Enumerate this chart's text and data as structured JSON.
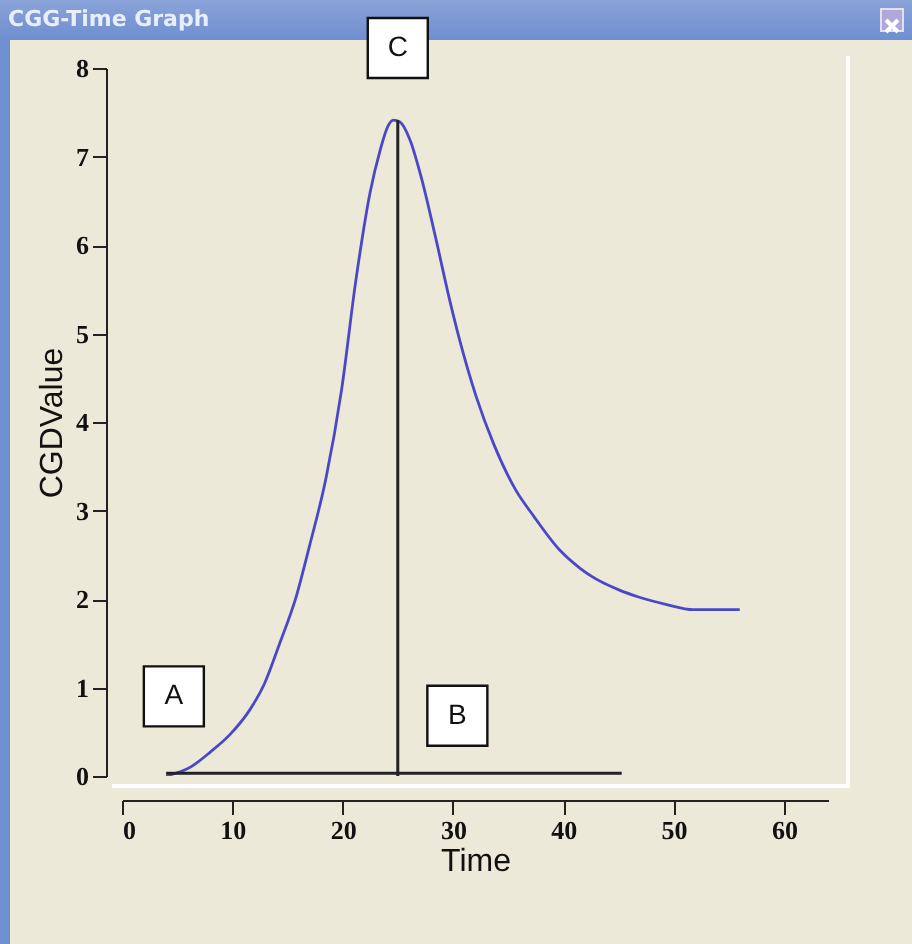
{
  "chart_data": {
    "type": "line",
    "title": "CGG-Time Graph",
    "xlabel": "Time",
    "ylabel": "CGDValue",
    "xlim": [
      0,
      64
    ],
    "xticks": [
      0,
      10,
      20,
      30,
      40,
      50,
      60
    ],
    "ylim": [
      0,
      8
    ],
    "yticks": [
      0,
      1,
      2,
      3,
      4,
      5,
      6,
      7,
      8
    ],
    "grid": false,
    "marker": "none",
    "line_style": "solid",
    "annotations": [
      {
        "text": "A",
        "x": 4.7,
        "y": 0.9
      },
      {
        "text": "B",
        "x": 30.4,
        "y": 0.68
      },
      {
        "text": "C",
        "x": 25
      }
    ],
    "series": [
      {
        "color": "#4a48c8",
        "x": [
          4,
          6.2,
          8,
          9.8,
          11.6,
          12.9,
          14.3,
          15.8,
          17,
          18.5,
          19.9,
          21.2,
          22.5,
          23.4,
          24.1,
          24.6,
          25.2,
          26.1,
          27.2,
          28.4,
          29.7,
          30.6,
          32.1,
          33.7,
          35.7,
          37.3,
          39.7,
          41.5,
          42.4,
          45.1,
          46.9,
          49.3,
          51.8,
          53.5,
          56
        ],
        "values": [
          0,
          0.1,
          0.27,
          0.47,
          0.75,
          1.04,
          1.5,
          2.03,
          2.6,
          3.37,
          4.36,
          5.6,
          6.6,
          7.07,
          7.34,
          7.41,
          7.39,
          7.19,
          6.73,
          6.1,
          5.38,
          4.93,
          4.29,
          3.75,
          3.23,
          2.94,
          2.55,
          2.35,
          2.27,
          2.1,
          2.02,
          1.94,
          1.88,
          1.88,
          1.88
        ]
      },
      {
        "color": "#222222",
        "x": [
          25,
          25
        ],
        "values": [
          0,
          7.41
        ]
      },
      {
        "color": "#222222",
        "x": [
          4,
          45.3
        ],
        "values": [
          0.03,
          0.03
        ]
      }
    ]
  }
}
